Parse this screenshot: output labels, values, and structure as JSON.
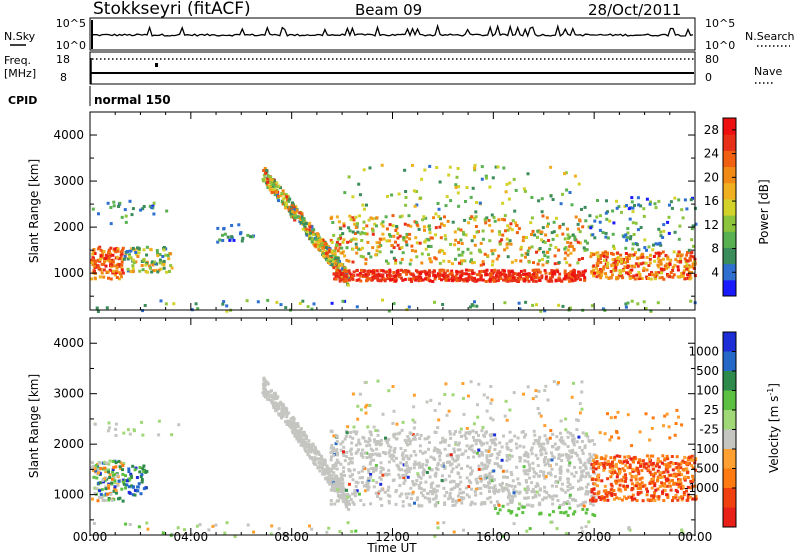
{
  "header": {
    "station": "Stokkseyri (fitACF)",
    "beam": "Beam 09",
    "date": "28/Oct/2011"
  },
  "strip": {
    "nsky_label": "N.Sky",
    "nsky_ticks": [
      "10^5",
      "10^0"
    ],
    "nsearch_label": "N.Search",
    "freq_label_1": "Freq.",
    "freq_label_2": "[MHz]",
    "freq_ticks": [
      "18",
      "8"
    ],
    "nave_label": "Nave",
    "nave_ticks": [
      "80",
      "0"
    ],
    "cpid_label": "CPID",
    "cpid_value": "normal 150"
  },
  "colors": {
    "power": [
      "#1a1aff",
      "#2e6fcf",
      "#3a8c5a",
      "#58b050",
      "#8cc43c",
      "#d2d22a",
      "#f0b020",
      "#f08a14",
      "#f06010",
      "#e83018",
      "#ee1010"
    ],
    "velocity": [
      "#1e2ed6",
      "#2468c8",
      "#2e8a4a",
      "#5cc040",
      "#a0d878",
      "#c4c4c0",
      "#ffa030",
      "#ff7a10",
      "#f04010",
      "#e82018"
    ]
  },
  "chart_data": [
    {
      "type": "heatmap",
      "name": "Power",
      "ylabel": "Slant Range [km]",
      "y_ticks": [
        "1000",
        "2000",
        "3000",
        "4000"
      ],
      "ylim": [
        200,
        4500
      ],
      "xlim": [
        "00:00",
        "24:00"
      ],
      "colorbar_label": "Power [dB]",
      "colorbar_ticks": [
        "4",
        "8",
        "12",
        "16",
        "20",
        "24",
        "28"
      ],
      "colorbar_range": [
        0,
        30
      ],
      "features": [
        {
          "t_start": 0.0,
          "t_end": 1.2,
          "r_start": 900,
          "r_end": 1600,
          "level": 26
        },
        {
          "t_start": 1.2,
          "t_end": 3.0,
          "r_start": 1100,
          "r_end": 1600,
          "level": 10
        },
        {
          "t_start": 9.5,
          "t_end": 19.5,
          "r_start": 850,
          "r_end": 1050,
          "level": 27
        },
        {
          "t_start": 9.5,
          "t_end": 19.5,
          "r_start": 1300,
          "r_end": 2300,
          "level": 14
        },
        {
          "t_start": 20.0,
          "t_end": 24.0,
          "r_start": 900,
          "r_end": 1500,
          "level": 24
        }
      ]
    },
    {
      "type": "heatmap",
      "name": "Velocity",
      "ylabel": "Slant Range [km]",
      "y_ticks": [
        "1000",
        "2000",
        "3000",
        "4000"
      ],
      "ylim": [
        200,
        4500
      ],
      "xlim": [
        "00:00",
        "24:00"
      ],
      "colorbar_label": "Velocity [m s^-1]",
      "colorbar_ticks": [
        "1000",
        "500",
        "100",
        "25",
        "-25",
        "-100",
        "-500",
        "-1000"
      ],
      "features": [
        {
          "t_start": 0.0,
          "t_end": 2.0,
          "r_start": 900,
          "r_end": 1700,
          "level": "500"
        },
        {
          "t_start": 7.0,
          "t_end": 20.0,
          "r_start": 800,
          "r_end": 3200,
          "level": "0"
        },
        {
          "t_start": 20.0,
          "t_end": 24.0,
          "r_start": 900,
          "r_end": 1800,
          "level": "-500"
        }
      ]
    }
  ],
  "x_axis": {
    "label": "Time UT",
    "ticks": [
      "00:00",
      "04:00",
      "08:00",
      "12:00",
      "16:00",
      "20:00",
      "00:00"
    ]
  }
}
